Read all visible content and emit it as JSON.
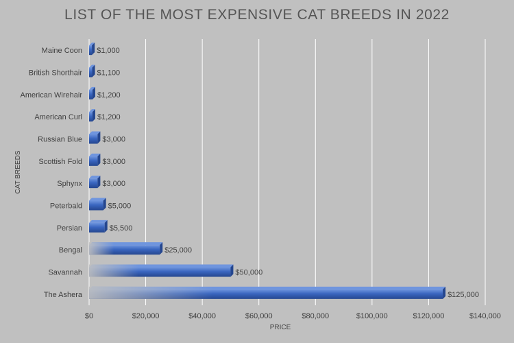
{
  "chart_data": {
    "type": "bar",
    "orientation": "horizontal",
    "title": "LIST OF THE MOST EXPENSIVE CAT BREEDS IN 2022",
    "xlabel": "PRICE",
    "ylabel": "CAT BREEDS",
    "categories": [
      "Maine Coon",
      "British Shorthair",
      "American Wirehair",
      "American Curl",
      "Russian Blue",
      "Scottish Fold",
      "Sphynx",
      "Peterbald",
      "Persian",
      "Bengal",
      "Savannah",
      "The Ashera"
    ],
    "values": [
      1000,
      1100,
      1200,
      1200,
      3000,
      3000,
      3000,
      5000,
      5500,
      25000,
      50000,
      125000
    ],
    "value_labels": [
      "$1,000",
      "$1,100",
      "$1,200",
      "$1,200",
      "$3,000",
      "$3,000",
      "$3,000",
      "$5,000",
      "$5,500",
      "$25,000",
      "$50,000",
      "$125,000"
    ],
    "xlim": [
      0,
      140000
    ],
    "xticks": [
      0,
      20000,
      40000,
      60000,
      80000,
      100000,
      120000,
      140000
    ],
    "xtick_labels": [
      "$0",
      "$20,000",
      "$40,000",
      "$60,000",
      "$80,000",
      "$100,000",
      "$120,000",
      "$140,000"
    ],
    "grid": "vertical",
    "legend": "none",
    "colors": {
      "background": "#c0c0c0",
      "bar": "#3a66c0",
      "bar_dark": "#24468f",
      "bar_light": "#6f95de",
      "grid": "#ffffff",
      "text": "#404040",
      "title": "#555555"
    }
  }
}
